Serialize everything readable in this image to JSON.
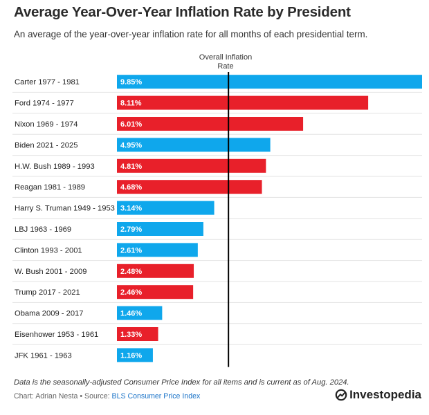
{
  "title": "Average Year-Over-Year Inflation Rate by President",
  "subtitle": "An average of the year-over-year inflation rate for all months of each presidential term.",
  "reference_line": {
    "label_line1": "Overall Inflation",
    "label_line2": "Rate"
  },
  "footer": {
    "note": "Data is the seasonally-adjusted Consumer Price Index for all items and is current as of Aug. 2024.",
    "credit_prefix": "Chart: Adrian Nesta • Source: ",
    "source_name": "BLS Consumer Price Index"
  },
  "brand": {
    "name": "Investopedia",
    "logo_icon": "investopedia-logo-icon"
  },
  "colors": {
    "democrat": "#0fa7ec",
    "republican": "#e8202a",
    "reference_line": "#000000",
    "row_divider": "#e3e3e3"
  },
  "chart_data": {
    "type": "bar",
    "orientation": "horizontal",
    "title": "Average Year-Over-Year Inflation Rate by President",
    "xlim": [
      0,
      9.85
    ],
    "reference_value": 3.6,
    "grid": false,
    "categories": [
      "Carter 1977 - 1981",
      "Ford 1974 - 1977",
      "Nixon 1969 - 1974",
      "Biden 2021 - 2025",
      "H.W. Bush 1989 - 1993",
      "Reagan 1981 - 1989",
      "Harry S. Truman 1949 - 1953",
      "LBJ 1963 - 1969",
      "Clinton 1993 - 2001",
      "W. Bush 2001 - 2009",
      "Trump 2017 - 2021",
      "Obama 2009 - 2017",
      "Eisenhower 1953 - 1961",
      "JFK 1961 - 1963"
    ],
    "values": [
      9.85,
      8.11,
      6.01,
      4.95,
      4.81,
      4.68,
      3.14,
      2.79,
      2.61,
      2.48,
      2.46,
      1.46,
      1.33,
      1.16
    ],
    "value_labels": [
      "9.85%",
      "8.11%",
      "6.01%",
      "4.95%",
      "4.81%",
      "4.68%",
      "3.14%",
      "2.79%",
      "2.61%",
      "2.48%",
      "2.46%",
      "1.46%",
      "1.33%",
      "1.16%"
    ],
    "party": [
      "democrat",
      "republican",
      "republican",
      "democrat",
      "republican",
      "republican",
      "democrat",
      "democrat",
      "democrat",
      "republican",
      "republican",
      "democrat",
      "republican",
      "democrat"
    ]
  }
}
